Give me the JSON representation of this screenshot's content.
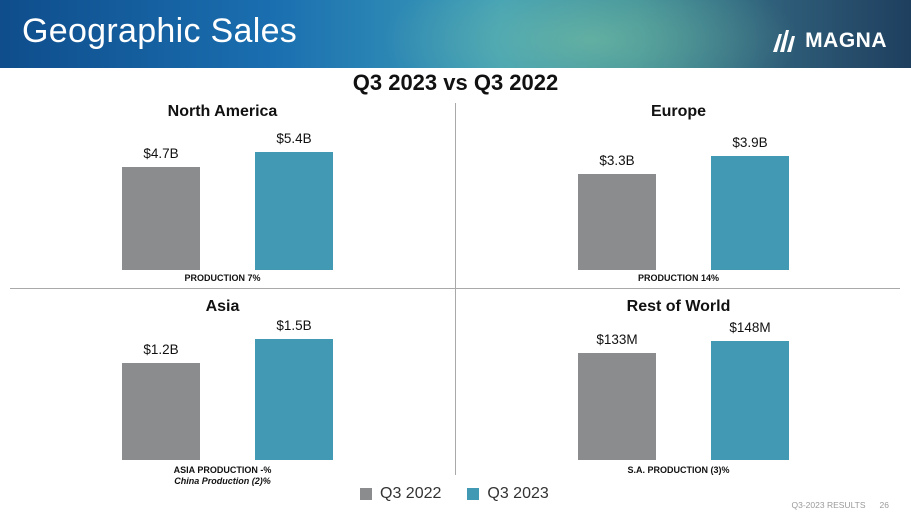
{
  "header": {
    "title": "Geographic Sales",
    "logo_text": "MAGNA"
  },
  "subtitle": "Q3 2023 vs Q3 2022",
  "legend": {
    "q2022": "Q3 2022",
    "q2023": "Q3 2023"
  },
  "footer": {
    "label": "Q3-2023 RESULTS",
    "page": "26"
  },
  "colors": {
    "q2022": "#8a8c8e",
    "q2023": "#4299b4"
  },
  "chart_data": [
    {
      "type": "bar",
      "title": "North America",
      "categories": [
        "Q3 2022",
        "Q3 2023"
      ],
      "values": [
        4.7,
        5.4
      ],
      "unit": "$B",
      "data_labels": [
        "$4.7B",
        "$5.4B"
      ],
      "footnote": "PRODUCTION 7%",
      "footnote2": ""
    },
    {
      "type": "bar",
      "title": "Europe",
      "categories": [
        "Q3 2022",
        "Q3 2023"
      ],
      "values": [
        3.3,
        3.9
      ],
      "unit": "$B",
      "data_labels": [
        "$3.3B",
        "$3.9B"
      ],
      "footnote": "PRODUCTION 14%",
      "footnote2": ""
    },
    {
      "type": "bar",
      "title": "Asia",
      "categories": [
        "Q3 2022",
        "Q3 2023"
      ],
      "values": [
        1.2,
        1.5
      ],
      "unit": "$B",
      "data_labels": [
        "$1.2B",
        "$1.5B"
      ],
      "footnote": "ASIA PRODUCTION -%",
      "footnote2": "China Production (2)%"
    },
    {
      "type": "bar",
      "title": "Rest of World",
      "categories": [
        "Q3 2022",
        "Q3 2023"
      ],
      "values": [
        133,
        148
      ],
      "unit": "$M",
      "data_labels": [
        "$133M",
        "$148M"
      ],
      "footnote": "S.A. PRODUCTION (3)%",
      "footnote2": ""
    }
  ]
}
